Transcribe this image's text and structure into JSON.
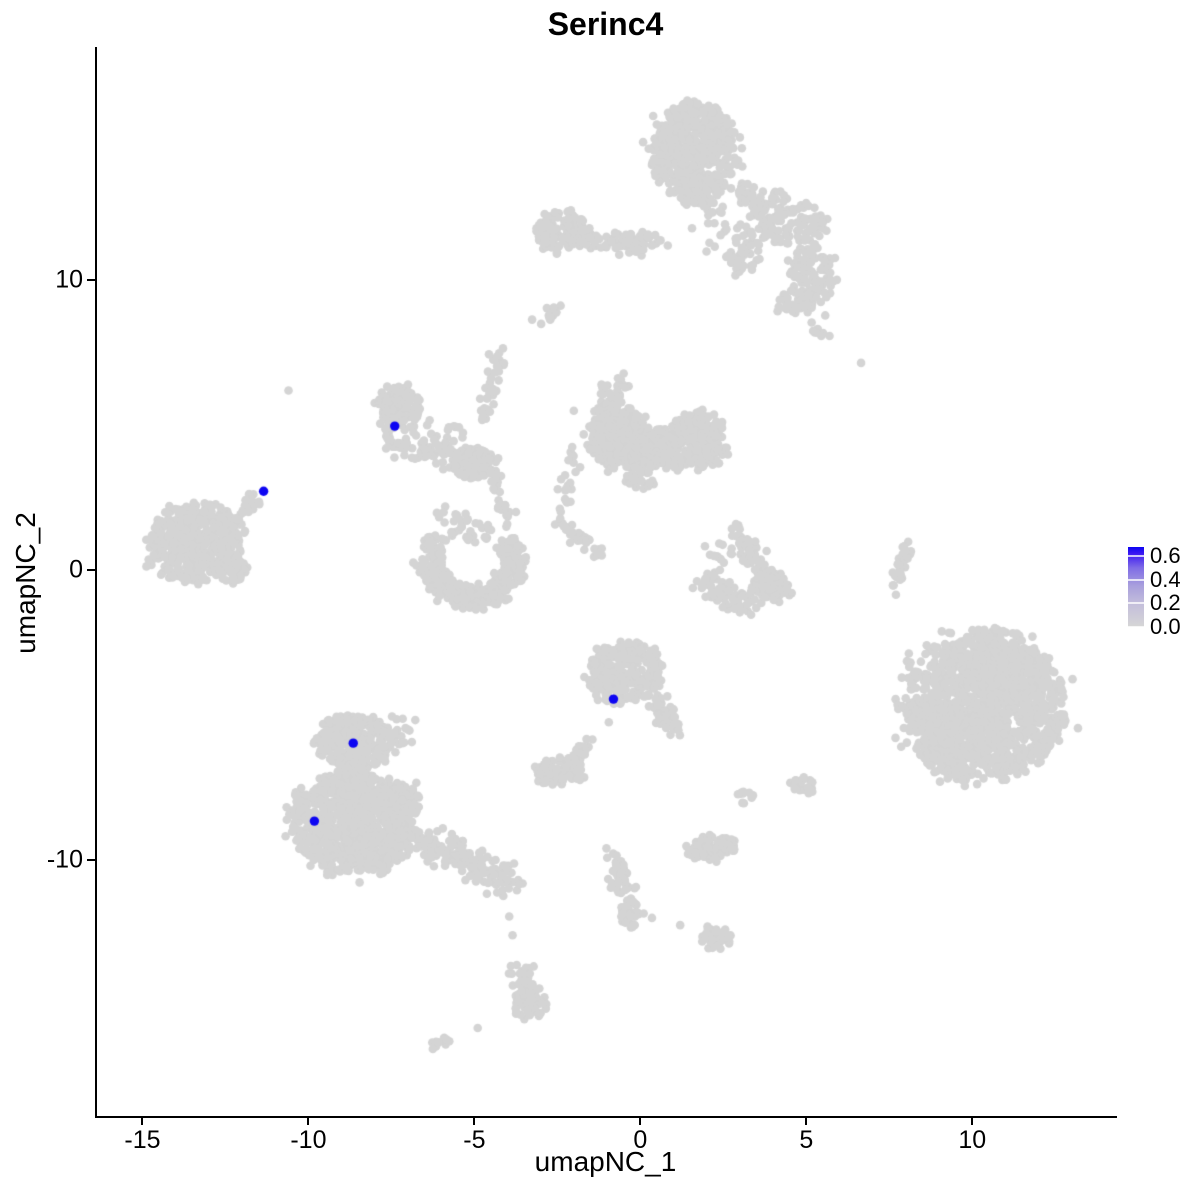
{
  "title": "Serinc4",
  "axes": {
    "x": {
      "label": "umapNC_1",
      "ticks": [
        "-15",
        "-10",
        "-5",
        "0",
        "5",
        "10"
      ],
      "tick_values": [
        -15,
        -10,
        -5,
        0,
        5,
        10
      ]
    },
    "y": {
      "label": "umapNC_2",
      "ticks": [
        "10",
        "0",
        "-10"
      ],
      "tick_values": [
        10,
        0,
        -10
      ]
    }
  },
  "legend": {
    "tick_labels": [
      "0.6",
      "0.4",
      "0.2",
      "0.0"
    ],
    "tick_values": [
      0.6,
      0.4,
      0.2,
      0.0
    ],
    "bar_top_value": 0.68,
    "low_color": "#d4d4d4",
    "high_color": "#0d05f2"
  },
  "colors": {
    "background": "#ffffff",
    "points": "#d4d4d4",
    "highlight": "#0d05f2",
    "axis": "#000000",
    "text": "#000000"
  },
  "chart_data": {
    "type": "scatter",
    "title": "Serinc4",
    "xlabel": "umapNC_1",
    "ylabel": "umapNC_2",
    "xlim": [
      -16.4,
      14.3
    ],
    "ylim": [
      -18.8,
      18.05
    ],
    "x_ticks": [
      -15,
      -10,
      -5,
      0,
      5,
      10
    ],
    "y_ticks": [
      -10,
      0,
      10
    ],
    "grid": false,
    "legend_position": "right",
    "color_scale": {
      "min": 0.0,
      "max": 0.6,
      "low": "lightgrey",
      "high": "blue"
    },
    "seed": 7,
    "point_radius_px": 4.3,
    "background_clusters": [
      {
        "name": "top-main",
        "type": "blob",
        "cx": 1.6,
        "cy": 14.55,
        "rx": 1.3,
        "ry": 1.55,
        "n": 560
      },
      {
        "name": "top-lower-lobe",
        "type": "blob",
        "cx": 1.8,
        "cy": 13.05,
        "rx": 0.75,
        "ry": 0.52,
        "n": 70
      },
      {
        "name": "top-right-trail",
        "type": "line",
        "x1": 2.85,
        "y1": 13.6,
        "x2": 4.05,
        "y2": 11.55,
        "w": 0.42,
        "n": 60
      },
      {
        "name": "top-trail-blob",
        "type": "blob",
        "cx": 3.15,
        "cy": 11.0,
        "rx": 0.54,
        "ry": 0.86,
        "n": 45
      },
      {
        "name": "top-below-sparse",
        "type": "blob",
        "cx": 2.0,
        "cy": 11.9,
        "rx": 0.7,
        "ry": 0.97,
        "n": 20
      },
      {
        "name": "upperleft-band-blob",
        "type": "blob",
        "cx": -2.4,
        "cy": 11.7,
        "rx": 0.84,
        "ry": 0.69,
        "n": 110
      },
      {
        "name": "upperleft-band",
        "type": "line",
        "x1": -1.65,
        "y1": 11.4,
        "x2": 0.45,
        "y2": 11.25,
        "w": 0.4,
        "n": 75
      },
      {
        "name": "upperright-1",
        "type": "blob",
        "cx": 4.8,
        "cy": 11.85,
        "rx": 0.9,
        "ry": 0.86,
        "n": 80
      },
      {
        "name": "upperright-2",
        "type": "blob",
        "cx": 5.25,
        "cy": 10.15,
        "rx": 0.75,
        "ry": 0.97,
        "n": 85
      },
      {
        "name": "upperright-3",
        "type": "blob",
        "cx": 4.65,
        "cy": 9.3,
        "rx": 0.6,
        "ry": 0.52,
        "n": 45
      },
      {
        "name": "upperright-bridge",
        "type": "blob",
        "cx": 3.9,
        "cy": 12.6,
        "rx": 0.6,
        "ry": 0.62,
        "n": 26
      },
      {
        "name": "upperright-sparse",
        "type": "blob",
        "cx": 5.6,
        "cy": 8.4,
        "rx": 0.5,
        "ry": 0.41,
        "n": 10
      },
      {
        "name": "small-streak-mid",
        "type": "line",
        "x1": -3.05,
        "y1": 8.55,
        "x2": -2.5,
        "y2": 9.05,
        "w": 0.25,
        "n": 14
      },
      {
        "name": "lone-dots-upper",
        "type": "dots",
        "points": [
          [
            -10.6,
            6.2
          ],
          [
            6.65,
            7.15
          ]
        ]
      },
      {
        "name": "hook-main",
        "type": "blob",
        "cx": -7.25,
        "cy": 5.7,
        "rx": 0.66,
        "ry": 0.66,
        "n": 120
      },
      {
        "name": "hook-left-edge",
        "type": "line",
        "x1": -7.7,
        "y1": 6.05,
        "x2": -7.5,
        "y2": 4.5,
        "w": 0.28,
        "n": 40
      },
      {
        "name": "hook-chain",
        "type": "line",
        "x1": -7.35,
        "y1": 4.3,
        "x2": -4.8,
        "y2": 3.75,
        "w": 0.35,
        "n": 75
      },
      {
        "name": "hook-knot",
        "type": "blob",
        "cx": -5.05,
        "cy": 3.7,
        "rx": 0.72,
        "ry": 0.52,
        "n": 120
      },
      {
        "name": "hook-sparse-top",
        "type": "blob",
        "cx": -6.3,
        "cy": 4.75,
        "rx": 1.0,
        "ry": 0.41,
        "n": 24
      },
      {
        "name": "chain-up",
        "type": "line",
        "x1": -4.3,
        "y1": 7.6,
        "x2": -4.7,
        "y2": 5.15,
        "w": 0.26,
        "n": 34
      },
      {
        "name": "chain-down",
        "type": "line",
        "x1": -4.55,
        "y1": 3.25,
        "x2": -3.95,
        "y2": 1.7,
        "w": 0.26,
        "n": 26
      },
      {
        "name": "u-crescent",
        "type": "arc",
        "cx": -5.03,
        "cy": 0.6,
        "rx": 1.35,
        "ry": 1.55,
        "a1": 185,
        "a2": 355,
        "w": 0.35,
        "n": 340
      },
      {
        "name": "u-left-tip",
        "type": "blob",
        "cx": -6.2,
        "cy": 0.85,
        "rx": 0.36,
        "ry": 0.41,
        "n": 35
      },
      {
        "name": "u-right-tip",
        "type": "blob",
        "cx": -3.95,
        "cy": 0.75,
        "rx": 0.36,
        "ry": 0.41,
        "n": 35
      },
      {
        "name": "u-inner-sparse",
        "type": "blob",
        "cx": -5.0,
        "cy": 1.35,
        "rx": 0.7,
        "ry": 0.41,
        "n": 20
      },
      {
        "name": "u-above-sparse",
        "type": "blob",
        "cx": -5.6,
        "cy": 1.8,
        "rx": 0.7,
        "ry": 0.45,
        "n": 14
      },
      {
        "name": "center-stem",
        "type": "line",
        "x1": -0.7,
        "y1": 6.4,
        "x2": -1.2,
        "y2": 4.85,
        "w": 0.5,
        "n": 80
      },
      {
        "name": "center-main",
        "type": "blob",
        "cx": -0.55,
        "cy": 4.5,
        "rx": 0.96,
        "ry": 1.0,
        "n": 320
      },
      {
        "name": "center-right-lobe",
        "type": "blob",
        "cx": 1.5,
        "cy": 4.3,
        "rx": 1.14,
        "ry": 0.9,
        "n": 240
      },
      {
        "name": "center-bridge",
        "type": "blob",
        "cx": 0.45,
        "cy": 4.15,
        "rx": 0.6,
        "ry": 0.62,
        "n": 80
      },
      {
        "name": "center-top-right",
        "type": "blob",
        "cx": 1.8,
        "cy": 5.0,
        "rx": 0.78,
        "ry": 0.52,
        "n": 45
      },
      {
        "name": "center-bottom-tail",
        "type": "blob",
        "cx": 0.0,
        "cy": 3.1,
        "rx": 0.45,
        "ry": 0.38,
        "n": 30
      },
      {
        "name": "center-left-chain",
        "type": "line",
        "x1": -1.95,
        "y1": 4.3,
        "x2": -2.4,
        "y2": 1.9,
        "w": 0.22,
        "n": 22
      },
      {
        "name": "diag-streak",
        "type": "line",
        "x1": -2.45,
        "y1": 1.7,
        "x2": -1.2,
        "y2": 0.5,
        "w": 0.25,
        "n": 40
      },
      {
        "name": "left-main",
        "type": "blob",
        "cx": -13.4,
        "cy": 0.95,
        "rx": 1.47,
        "ry": 1.34,
        "n": 430
      },
      {
        "name": "left-chain",
        "type": "line",
        "x1": -12.2,
        "y1": 1.65,
        "x2": -11.5,
        "y2": 2.6,
        "w": 0.3,
        "n": 22
      },
      {
        "name": "left-sub",
        "type": "blob",
        "cx": -12.3,
        "cy": -0.05,
        "rx": 0.54,
        "ry": 0.41,
        "n": 45
      },
      {
        "name": "rightmid-arm",
        "type": "line",
        "x1": 2.9,
        "y1": 1.3,
        "x2": 3.6,
        "y2": -0.05,
        "w": 0.4,
        "n": 65
      },
      {
        "name": "rightmid-arc",
        "type": "line",
        "x1": 1.95,
        "y1": -0.45,
        "x2": 3.25,
        "y2": -1.2,
        "w": 0.4,
        "n": 75
      },
      {
        "name": "rightmid-blob",
        "type": "blob",
        "cx": 3.95,
        "cy": -0.6,
        "rx": 0.6,
        "ry": 0.55,
        "n": 85
      },
      {
        "name": "rightmid-sparse",
        "type": "blob",
        "cx": 2.3,
        "cy": 0.5,
        "rx": 0.48,
        "ry": 0.55,
        "n": 12
      },
      {
        "name": "right-streak",
        "type": "line",
        "x1": 8.1,
        "y1": 0.95,
        "x2": 7.65,
        "y2": -0.5,
        "w": 0.22,
        "n": 28
      },
      {
        "name": "right-streak-dot",
        "type": "dots",
        "points": [
          [
            7.7,
            -0.85
          ]
        ]
      },
      {
        "name": "farright-main",
        "type": "blob",
        "cx": 10.35,
        "cy": -4.7,
        "rx": 2.4,
        "ry": 2.6,
        "n": 1250
      },
      {
        "name": "farright-topright",
        "type": "blob",
        "cx": 10.9,
        "cy": -3.4,
        "rx": 1.2,
        "ry": 0.97,
        "n": 130
      },
      {
        "name": "farright-bottomleft",
        "type": "blob",
        "cx": 9.5,
        "cy": -5.9,
        "rx": 1.2,
        "ry": 0.97,
        "n": 130
      },
      {
        "name": "centerbottom-main",
        "type": "blob",
        "cx": -0.45,
        "cy": -3.55,
        "rx": 1.08,
        "ry": 1.07,
        "n": 310
      },
      {
        "name": "centerbottom-arm",
        "type": "line",
        "x1": 0.45,
        "y1": -4.5,
        "x2": 1.15,
        "y2": -5.55,
        "w": 0.35,
        "n": 55
      },
      {
        "name": "centerbottom-dot",
        "type": "dots",
        "points": [
          [
            -0.95,
            -5.25
          ]
        ]
      },
      {
        "name": "smallblob-below",
        "type": "blob",
        "cx": -2.4,
        "cy": -6.95,
        "rx": 0.75,
        "ry": 0.52,
        "n": 75
      },
      {
        "name": "smallblob-chain",
        "type": "line",
        "x1": -1.9,
        "y1": -6.45,
        "x2": -1.55,
        "y2": -5.85,
        "w": 0.22,
        "n": 14
      },
      {
        "name": "bottomleft-top",
        "type": "blob",
        "cx": -8.6,
        "cy": -5.95,
        "rx": 1.14,
        "ry": 0.97,
        "n": 290
      },
      {
        "name": "bottomleft-main",
        "type": "blob",
        "cx": -8.7,
        "cy": -8.8,
        "rx": 1.86,
        "ry": 1.69,
        "n": 780
      },
      {
        "name": "bottomleft-neck",
        "type": "blob",
        "cx": -8.75,
        "cy": -7.35,
        "rx": 0.72,
        "ry": 0.55,
        "n": 90
      },
      {
        "name": "bottomleft-right",
        "type": "blob",
        "cx": -7.35,
        "cy": -7.95,
        "rx": 0.75,
        "ry": 0.69,
        "n": 100
      },
      {
        "name": "bottomleft-tail",
        "type": "line",
        "x1": -7.05,
        "y1": -9.05,
        "x2": -3.85,
        "y2": -10.75,
        "w": 0.5,
        "n": 190
      },
      {
        "name": "bottomleft-sparse",
        "type": "blob",
        "cx": -7.2,
        "cy": -5.6,
        "rx": 0.6,
        "ry": 0.52,
        "n": 20
      },
      {
        "name": "bottom-streak",
        "type": "line",
        "x1": -0.85,
        "y1": -9.5,
        "x2": -0.45,
        "y2": -11.15,
        "w": 0.3,
        "n": 45
      },
      {
        "name": "bottom-streak-knot",
        "type": "blob",
        "cx": -0.3,
        "cy": -11.85,
        "rx": 0.3,
        "ry": 0.52,
        "n": 40
      },
      {
        "name": "bottom-dots",
        "type": "dots",
        "points": [
          [
            0.1,
            -11.85
          ],
          [
            0.35,
            -12.0
          ],
          [
            1.2,
            -12.25
          ],
          [
            -3.95,
            -11.95
          ],
          [
            -3.85,
            -12.6
          ]
        ]
      },
      {
        "name": "bottom-right-blob",
        "type": "blob",
        "cx": 2.2,
        "cy": -9.6,
        "rx": 0.78,
        "ry": 0.45,
        "n": 85
      },
      {
        "name": "bottom-hook",
        "type": "blob",
        "cx": 2.25,
        "cy": -12.7,
        "rx": 0.48,
        "ry": 0.38,
        "n": 40
      },
      {
        "name": "tiny-1",
        "type": "blob",
        "cx": 3.15,
        "cy": -7.85,
        "rx": 0.27,
        "ry": 0.28,
        "n": 10
      },
      {
        "name": "tiny-2",
        "type": "blob",
        "cx": 4.85,
        "cy": -7.45,
        "rx": 0.39,
        "ry": 0.31,
        "n": 24
      },
      {
        "name": "bottom-banana",
        "type": "line",
        "x1": -3.6,
        "y1": -13.75,
        "x2": -3.15,
        "y2": -15.2,
        "w": 0.35,
        "n": 80
      },
      {
        "name": "bottom-banana-tip",
        "type": "blob",
        "cx": -3.5,
        "cy": -15.0,
        "rx": 0.3,
        "ry": 0.48,
        "n": 25
      },
      {
        "name": "bottom-dash",
        "type": "line",
        "x1": -6.3,
        "y1": -16.5,
        "x2": -5.8,
        "y2": -16.15,
        "w": 0.2,
        "n": 13
      },
      {
        "name": "bottom-lone-dot",
        "type": "dots",
        "points": [
          [
            -4.9,
            -15.8
          ]
        ]
      }
    ],
    "highlighted_cells": [
      {
        "x": -7.4,
        "y": 4.97,
        "value": 0.6
      },
      {
        "x": -11.35,
        "y": 2.72,
        "value": 0.65
      },
      {
        "x": -8.65,
        "y": -5.97,
        "value": 0.6
      },
      {
        "x": -9.82,
        "y": -8.66,
        "value": 0.6
      },
      {
        "x": -0.81,
        "y": -4.45,
        "value": 0.6
      }
    ]
  }
}
